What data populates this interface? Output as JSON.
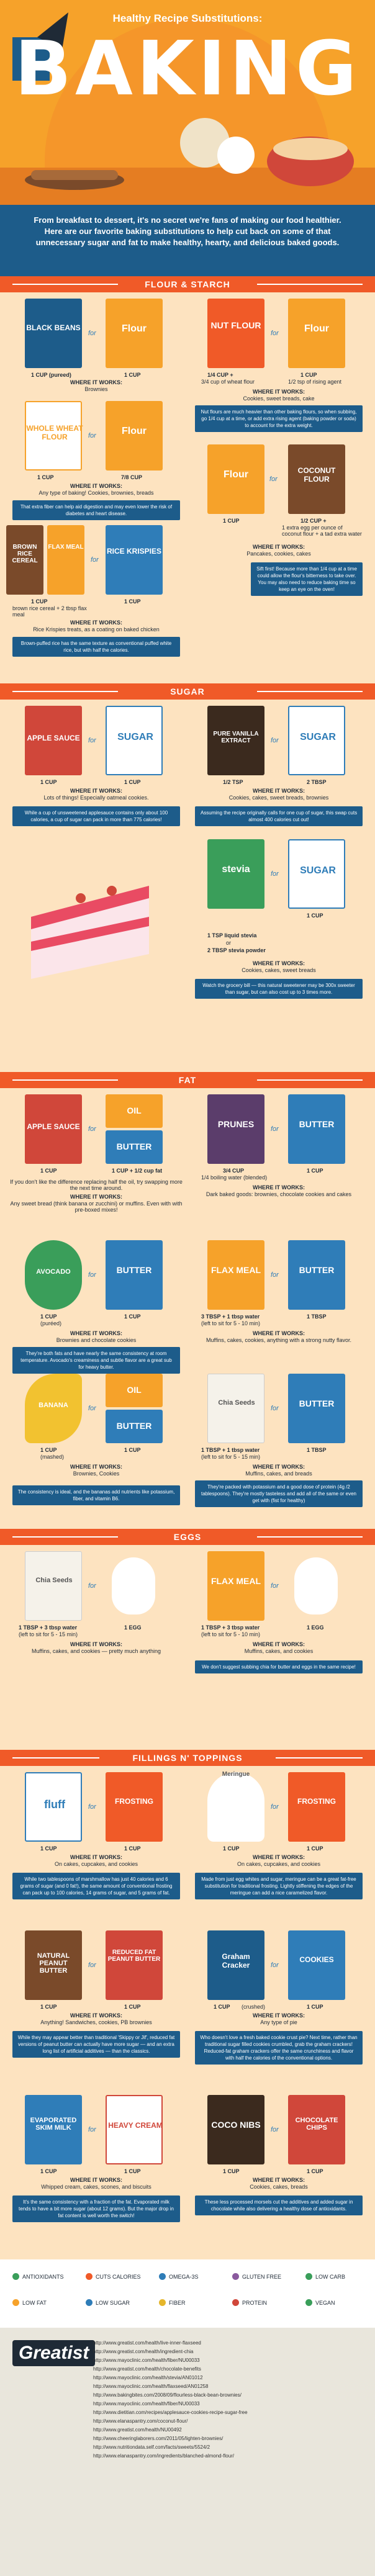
{
  "header": {
    "subtitle": "Healthy Recipe Substitutions:",
    "title": "BAKING"
  },
  "intro": "From breakfast to dessert, it's no secret we're fans of making our food healthier. Here are our favorite baking substitutions to help cut back on some of that unnecessary sugar and fat to make healthy, hearty, and delicious baked goods.",
  "for_word": "for",
  "sections": {
    "flour": "FLOUR & STARCH",
    "sugar": "SUGAR",
    "fat": "FAT",
    "eggs": "EGGS",
    "fillings": "FILLINGS N' TOPPINGS"
  },
  "flour": {
    "p1": {
      "a_label": "BLACK BEANS",
      "b_label": "Flour",
      "a_qty": "1 CUP (pureed)",
      "b_qty": "1 CUP",
      "wi": "WHERE IT WORKS:",
      "wiv": "Brownies"
    },
    "p2": {
      "a_label": "NUT FLOUR",
      "b_label": "Flour",
      "a_qty": "1/4 CUP +",
      "a_qty2": "3/4 cup of wheat flour",
      "b_qty": "1 CUP",
      "b_qty2": "1/2 tsp of rising agent",
      "wi": "WHERE IT WORKS:",
      "wiv": "Cookies, sweet breads, cake",
      "note": "Nut flours are much heavier than other baking flours, so when subbing, go 1/4 cup at a time, or add extra rising agent (baking powder or soda) to account for the extra weight."
    },
    "p3": {
      "a_label": "WHOLE WHEAT FLOUR",
      "b_label": "Flour",
      "a_qty": "1 CUP",
      "b_qty": "7/8 CUP",
      "wi": "WHERE IT WORKS:",
      "wiv": "Any type of baking! Cookies, brownies, breads",
      "note": "That extra fiber can help aid digestion and may even lower the risk of diabetes and heart disease."
    },
    "p4": {
      "a_label": "COCONUT FLOUR",
      "b_label": "Flour",
      "a_qty": "1/2 CUP +",
      "a_qty2": "1 extra egg per ounce of coconut flour + a tad extra water",
      "b_qty": "1 CUP",
      "wi": "WHERE IT WORKS:",
      "wiv": "Pancakes, cookies, cakes",
      "note": "Sift first! Because more than 1/4 cup at a time could allow the flour's bitterness to take over. You may also need to reduce baking time so keep an eye on the oven!"
    },
    "p5": {
      "a_label": "BROWN RICE CEREAL",
      "a2_label": "FLAX MEAL",
      "b_label": "RICE KRISPIES",
      "a_qty": "1 CUP",
      "a_qty2": "brown rice cereal + 2 tbsp flax meal",
      "b_qty": "1 CUP",
      "wi": "WHERE IT WORKS:",
      "wiv": "Rice Krispies treats, as a coating on baked chicken",
      "note": "Brown-puffed rice has the same texture as conventional puffed white rice, but with half the calories."
    }
  },
  "sugar": {
    "p1": {
      "a_label": "APPLE SAUCE",
      "b_label": "SUGAR",
      "a_qty": "1 CUP",
      "b_qty": "1 CUP",
      "wi": "WHERE IT WORKS:",
      "wiv": "Lots of things! Especially oatmeal cookies.",
      "note": "While a cup of unsweetened applesauce contains only about 100 calories, a cup of sugar can pack in more than 775 calories!"
    },
    "p2": {
      "a_label": "PURE VANILLA EXTRACT",
      "b_label": "SUGAR",
      "a_qty": "1/2 TSP",
      "b_qty": "2 TBSP",
      "wi": "WHERE IT WORKS:",
      "wiv": "Cookies, cakes, sweet breads, brownies",
      "note": "Assuming the recipe originally calls for one cup of sugar, this swap cuts almost 400 calories cut out!"
    },
    "p3": {
      "a_label": "stevia",
      "b_label": "SUGAR",
      "a_qty": "1 TSP liquid stevia",
      "a_or": "or",
      "a_qty2": "2 TBSP stevia powder",
      "b_qty": "1 CUP",
      "wi": "WHERE IT WORKS:",
      "wiv": "Cookies, cakes, sweet breads",
      "note": "Watch the grocery bill — this natural sweetener may be 300x sweeter than sugar, but can also cost up to 3 times more."
    }
  },
  "fat": {
    "p1": {
      "a_label": "APPLE SAUCE",
      "b_label": "OIL",
      "b2_label": "BUTTER",
      "a_qty": "1 CUP",
      "b_qty": "1 CUP + 1/2 cup fat",
      "wi": "WHERE IT WORKS:",
      "wiv": "Any sweet bread (think banana or zucchini) or muffins. Even with with pre-boxed mixes!",
      "pre": "If you don't like the difference replacing half the oil, try swapping more the next time around."
    },
    "p2": {
      "a_label": "PRUNES",
      "b_label": "BUTTER",
      "a_qty": "3/4 CUP",
      "a_qty2": "1/4 boiling water (blended)",
      "b_qty": "1 CUP",
      "wi": "WHERE IT WORKS:",
      "wiv": "Dark baked goods: brownies, chocolate cookies and cakes"
    },
    "p3": {
      "a_label": "AVOCADO",
      "b_label": "BUTTER",
      "a_qty": "1 CUP",
      "a_qty2": "(puréed)",
      "b_qty": "1 CUP",
      "wi": "WHERE IT WORKS:",
      "wiv": "Brownies and chocolate cookies",
      "note": "They're both fats and have nearly the same consistency at room temperature. Avocado's creaminess and subtle flavor are a great sub for heavy butter."
    },
    "p4": {
      "a_label": "FLAX MEAL",
      "b_label": "BUTTER",
      "a_qty": "3 TBSP + 1 tbsp water",
      "a_qty2": "(left to sit for 5 - 10 min)",
      "b_qty": "1 TBSP",
      "wi": "WHERE IT WORKS:",
      "wiv": "Muffins, cakes, cookies, anything with a strong nutty flavor."
    },
    "p5": {
      "a_label": "BANANA",
      "b_label": "OIL",
      "b2_label": "BUTTER",
      "a_qty": "1 CUP",
      "a_qty2": "(mashed)",
      "b_qty": "1 CUP",
      "wi": "WHERE IT WORKS:",
      "wiv": "Brownies, Cookies",
      "note": "The consistency is ideal, and the bananas add nutrients like potassium, fiber, and vitamin B6."
    },
    "p6": {
      "a_label": "Chia Seeds",
      "b_label": "BUTTER",
      "a_qty": "1 TBSP + 1 tbsp water",
      "a_qty2": "(left to sit for 5 - 15 min)",
      "b_qty": "1 TBSP",
      "wi": "WHERE IT WORKS:",
      "wiv": "Muffins, cakes, and breads",
      "note": "They're packed with potassium and a good dose of protein (4g /2 tablespoons). They're mostly tasteless and add all of the same or even get with (fist for healthy)"
    }
  },
  "eggs": {
    "p1": {
      "a_label": "Chia Seeds",
      "b_label": "1 EGG",
      "a_qty": "1 TBSP + 3 tbsp water",
      "a_qty2": "(left to sit for 5 - 15 min)",
      "b_qty": "1 EGG",
      "wi": "WHERE IT WORKS:",
      "wiv": "Muffins, cakes, and cookies — pretty much anything"
    },
    "p2": {
      "a_label": "FLAX MEAL",
      "b_label": "1 EGG",
      "a_qty": "1 TBSP + 3 tbsp water",
      "a_qty2": "(left to sit for 5 - 10 min)",
      "b_qty": "1 EGG",
      "wi": "WHERE IT WORKS:",
      "wiv": "Muffins, cakes, and cookies",
      "note": "We don't suggest subbing chia for butter and eggs in the same recipe!"
    }
  },
  "fill": {
    "p1": {
      "a_label": "fluff",
      "b_label": "FROSTING",
      "a_qty": "1 CUP",
      "b_qty": "1 CUP",
      "wi": "WHERE IT WORKS:",
      "wiv": "On cakes, cupcakes, and cookies",
      "note": "While two tablespoons of marshmallow has just 40 calories and 6 grams of sugar (and 0 fat!), the same amount of conventional frosting can pack up to 100 calories, 14 grams of sugar, and 5 grams of fat."
    },
    "p2": {
      "a_label": "Meringue",
      "b_label": "FROSTING",
      "a_qty": "1 CUP",
      "b_qty": "1 CUP",
      "wi": "WHERE IT WORKS:",
      "wiv": "On cakes, cupcakes, and cookies",
      "note": "Made from just egg whites and sugar, meringue can be a great fat-free substitution for traditional frosting. Lightly stiffening the edges of the meringue can add a nice caramelized flavor."
    },
    "p3": {
      "a_label": "NATURAL PEANUT BUTTER",
      "b_label": "REDUCED FAT PEANUT BUTTER",
      "a_qty": "1 CUP",
      "b_qty": "1 CUP",
      "wi": "WHERE IT WORKS:",
      "wiv": "Anything! Sandwiches, cookies, PB brownies",
      "note": "While they may appear better than traditional 'Skippy or Jif', reduced fat versions of peanut butter can actually have more sugar — and an extra long list of artificial additives — than the classics."
    },
    "p4": {
      "a_label": "Graham Cracker",
      "b_label": "COOKIES",
      "a_qty": "1 CUP",
      "a_qty2": "(crushed)",
      "b_qty": "1 CUP",
      "wi": "WHERE IT WORKS:",
      "wiv": "Any type of pie",
      "note": "Who doesn't love a fresh baked cookie crust pie? Next time, rather than traditional sugar filled cookies crumbled, grab the graham crackers! Reduced-fat graham crackers offer the same crunchiness and flavor with half the calories of the conventional options."
    },
    "p5": {
      "a_label": "EVAPORATED SKIM MILK",
      "b_label": "HEAVY CREAM",
      "a_qty": "1 CUP",
      "b_qty": "1 CUP",
      "wi": "WHERE IT WORKS:",
      "wiv": "Whipped cream, cakes, scones, and biscuits",
      "note": "It's the same consistency with a fraction of the fat. Evaporated milk tends to have a bit more sugar (about 12 grams). But the major drop in fat content is well worth the switch!"
    },
    "p6": {
      "a_label": "COCO NIBS",
      "b_label": "CHOCOLATE CHIPS",
      "a_qty": "1 CUP",
      "b_qty": "1 CUP",
      "wi": "WHERE IT WORKS:",
      "wiv": "Cookies, cakes, breads",
      "note": "These less processed morsels cut the additives and added sugar in chocolate while also delivering a healthy dose of antioxidants."
    }
  },
  "legend": [
    {
      "label": "ANTIOXIDANTS",
      "color": "#3a9e5a"
    },
    {
      "label": "CUTS CALORIES",
      "color": "#f05a28"
    },
    {
      "label": "OMEGA-3S",
      "color": "#2f7db8"
    },
    {
      "label": "GLUTEN FREE",
      "color": "#8a5a9e"
    },
    {
      "label": "LOW CARB",
      "color": "#3a9e5a"
    },
    {
      "label": "LOW FAT",
      "color": "#f6a22a"
    },
    {
      "label": "LOW SUGAR",
      "color": "#2f7db8"
    },
    {
      "label": "FIBER",
      "color": "#e5b62b"
    },
    {
      "label": "PROTEIN",
      "color": "#d0473a"
    },
    {
      "label": "VEGAN",
      "color": "#3a9e5a"
    }
  ],
  "brand": "Greatist",
  "sources": [
    "http://www.greatist.com/health/live-inner-flaxseed",
    "http://www.greatist.com/health/ingredient-chia",
    "http://www.mayoclinic.com/health/fiber/NU00033",
    "http://www.greatist.com/health/chocolate-benefits",
    "http://www.mayoclinic.com/health/stevia/AN01012",
    "http://www.mayoclinic.com/health/flaxseed/AN01258",
    "http://www.bakingbites.com/2008/09/flourless-black-bean-brownies/",
    "http://www.mayoclinic.com/health/fiber/NU00033",
    "http://www.dietitian.com/recipes/applesauce-cookies-recipe-sugar-free",
    "http://www.elanaspantry.com/coconut-flour/",
    "http://www.greatist.com/health/NU00492",
    "http://www.cheeringlaborers.com/2011/05/lighten-brownies/",
    "http://www.nutritiondata.self.com/facts/sweets/5524/2",
    "http://www.elanaspantry.com/ingredients/blanched-almond-flour/"
  ]
}
